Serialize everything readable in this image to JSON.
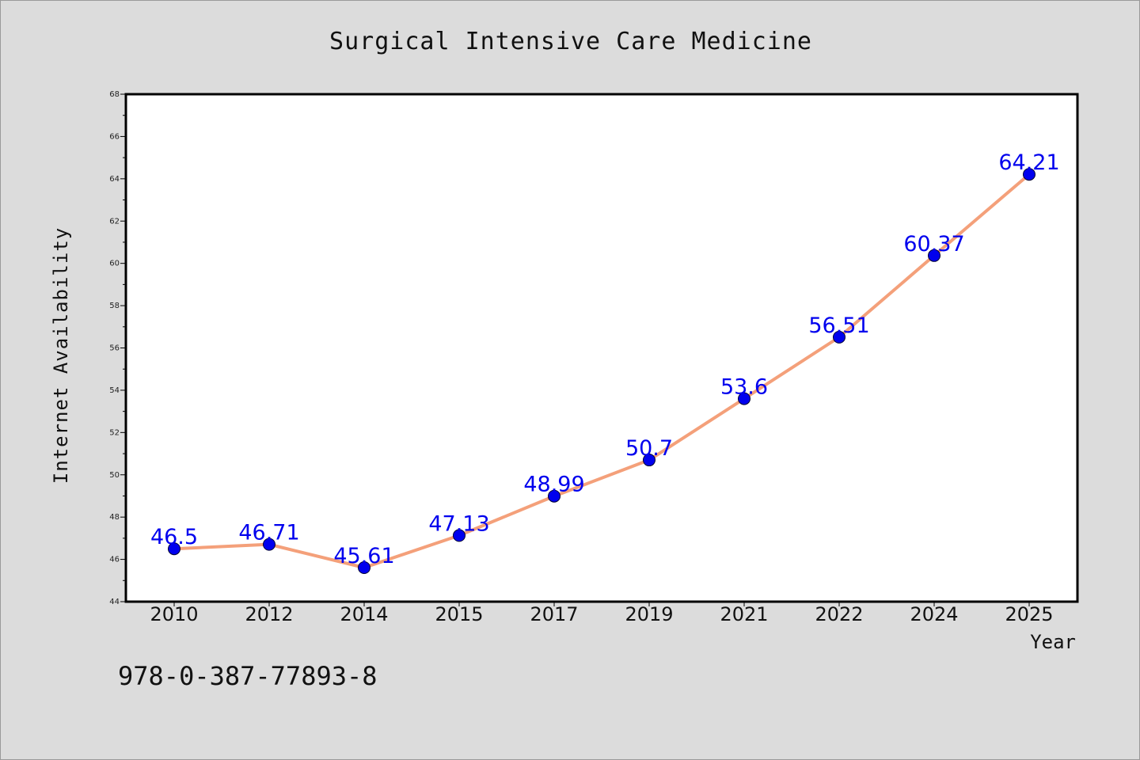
{
  "chart_data": {
    "type": "line",
    "title": "Surgical Intensive Care Medicine",
    "xlabel": "Year",
    "ylabel": "Internet Availability",
    "categories": [
      "2010",
      "2012",
      "2014",
      "2015",
      "2017",
      "2019",
      "2021",
      "2022",
      "2024",
      "2025"
    ],
    "series": [
      {
        "values": [
          46.5,
          46.71,
          45.61,
          47.13,
          48.99,
          50.7,
          53.6,
          56.51,
          60.37,
          64.21
        ],
        "labels": [
          "46.5",
          "46.71",
          "45.61",
          "47.13",
          "48.99",
          "50.7",
          "53.6",
          "56.51",
          "60.37",
          "64.21"
        ],
        "line_color": "#f4a07a",
        "marker_color": "#0000ee",
        "label_color": "#0000ee"
      }
    ],
    "ylim": [
      44,
      68
    ],
    "yticks": [
      "44",
      "46",
      "48",
      "50",
      "52",
      "54",
      "56",
      "58",
      "60",
      "62",
      "64",
      "66",
      "68"
    ],
    "grid": false
  },
  "footer": {
    "isbn": "978-0-387-77893-8"
  }
}
